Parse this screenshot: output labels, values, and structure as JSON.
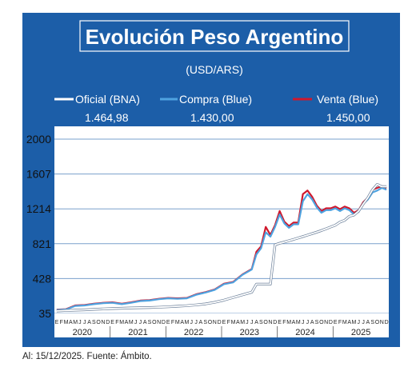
{
  "header": {
    "title": "Evolución Peso Argentino",
    "subtitle": "(USD/ARS)"
  },
  "legend": [
    {
      "label": "Oficial (BNA)",
      "value": "1.464,98",
      "color": "#ffffff"
    },
    {
      "label": "Compra (Blue)",
      "value": "1.430,00",
      "color": "#4fa3e0"
    },
    {
      "label": "Venta (Blue)",
      "value": "1.450,00",
      "color": "#d0182c"
    }
  ],
  "footnote": "Al: 15/12/2025. Fuente: Ámbito.",
  "colors": {
    "background": "#1c5ea8",
    "plot": "#ffffff",
    "grid": "#7aa0cc",
    "oficial": "#ffffff",
    "compra": "#4fa3e0",
    "venta": "#d0182c"
  },
  "chart_data": {
    "type": "line",
    "title": "Evolución Peso Argentino",
    "subtitle": "(USD/ARS)",
    "xlabel": "",
    "ylabel": "",
    "ylim": [
      35,
      2000
    ],
    "yticks": [
      35,
      428,
      821,
      1214,
      1607,
      2000
    ],
    "grid": true,
    "legend_position": "top",
    "month_letters": [
      "E",
      "F",
      "M",
      "A",
      "M",
      "J",
      "J",
      "A",
      "S",
      "O",
      "N",
      "D"
    ],
    "years": [
      "2020",
      "2021",
      "2022",
      "2023",
      "2024",
      "2025"
    ],
    "x": [
      "2020-01",
      "2020-03",
      "2020-05",
      "2020-07",
      "2020-09",
      "2020-11",
      "2021-01",
      "2021-03",
      "2021-05",
      "2021-07",
      "2021-09",
      "2021-11",
      "2022-01",
      "2022-03",
      "2022-05",
      "2022-07",
      "2022-09",
      "2022-11",
      "2023-01",
      "2023-03",
      "2023-05",
      "2023-07",
      "2023-08",
      "2023-09",
      "2023-10",
      "2023-11",
      "2023-12",
      "2024-01",
      "2024-02",
      "2024-03",
      "2024-04",
      "2024-05",
      "2024-06",
      "2024-07",
      "2024-08",
      "2024-09",
      "2024-10",
      "2024-11",
      "2024-12",
      "2025-01",
      "2025-02",
      "2025-03",
      "2025-04",
      "2025-05",
      "2025-06",
      "2025-07",
      "2025-08",
      "2025-09",
      "2025-10",
      "2025-11",
      "2025-12"
    ],
    "series": [
      {
        "name": "Oficial (BNA)",
        "values": [
          63,
          68,
          72,
          76,
          81,
          86,
          90,
          94,
          97,
          99,
          102,
          105,
          110,
          116,
          122,
          131,
          142,
          160,
          185,
          215,
          245,
          275,
          365,
          365,
          365,
          365,
          808,
          826,
          840,
          855,
          870,
          886,
          902,
          918,
          935,
          952,
          970,
          990,
          1010,
          1030,
          1065,
          1085,
          1130,
          1145,
          1190,
          1270,
          1340,
          1430,
          1490,
          1465,
          1465
        ]
      },
      {
        "name": "Compra (Blue)",
        "values": [
          75,
          80,
          120,
          125,
          140,
          150,
          155,
          140,
          155,
          175,
          180,
          195,
          205,
          200,
          205,
          245,
          270,
          300,
          365,
          385,
          470,
          530,
          700,
          770,
          950,
          900,
          1010,
          1150,
          1050,
          1000,
          1040,
          1040,
          1300,
          1380,
          1320,
          1230,
          1170,
          1200,
          1200,
          1220,
          1190,
          1220,
          1200,
          1150,
          1180,
          1270,
          1320,
          1400,
          1420,
          1450,
          1430
        ]
      },
      {
        "name": "Venta (Blue)",
        "values": [
          78,
          83,
          125,
          130,
          145,
          155,
          160,
          145,
          160,
          180,
          185,
          200,
          210,
          205,
          210,
          250,
          275,
          305,
          370,
          390,
          475,
          535,
          730,
          790,
          1010,
          920,
          1030,
          1190,
          1070,
          1020,
          1060,
          1060,
          1380,
          1420,
          1350,
          1250,
          1190,
          1220,
          1220,
          1240,
          1210,
          1240,
          1220,
          1170,
          1200,
          1290,
          1340,
          1430,
          1450,
          1470,
          1450
        ]
      }
    ]
  }
}
